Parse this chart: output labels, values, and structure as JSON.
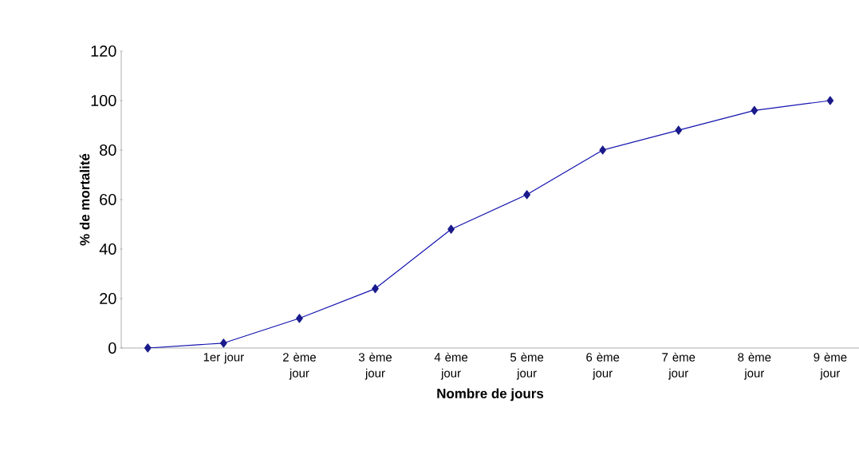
{
  "chart_data": {
    "type": "line",
    "xlabel": "Nombre de jours",
    "ylabel": "% de mortalité",
    "categories": [
      null,
      "1er jour",
      "2 ème jour",
      "3 ème jour",
      "4 ème jour",
      "5 ème jour",
      "6 ème jour",
      "7 ème jour",
      "8 ème jour",
      "9 ème jour"
    ],
    "values": [
      0,
      2,
      12,
      24,
      48,
      62,
      80,
      88,
      96,
      100
    ],
    "color": "#1a1a8c",
    "marker": "diamond",
    "line_style": "solid",
    "ylim": [
      0,
      120
    ],
    "yticks": [
      0,
      20,
      40,
      60,
      80,
      100,
      120
    ],
    "grid": false
  }
}
